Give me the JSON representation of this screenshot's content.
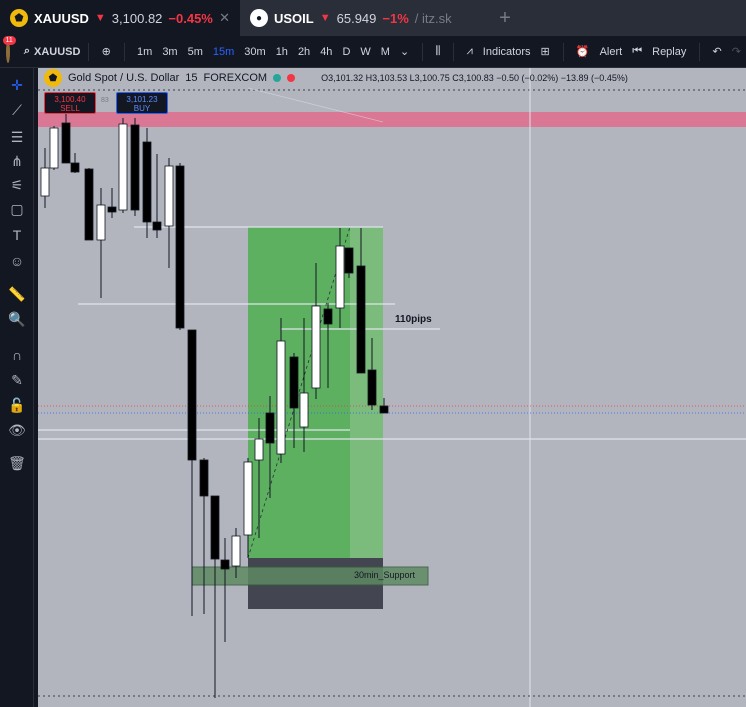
{
  "tabs": [
    {
      "symbol": "XAUUSD",
      "arrow": "▼",
      "price": "3,100.82",
      "change": "−0.45%",
      "close": "✕"
    },
    {
      "symbol": "USOIL",
      "arrow": "▼",
      "price": "65.949",
      "change": "−1%",
      "extra": "/ itz.sk"
    }
  ],
  "toolbar": {
    "notifications": "11",
    "symbol": "XAUUSD",
    "intervals": [
      "1m",
      "3m",
      "5m",
      "15m",
      "30m",
      "1h",
      "2h",
      "4h",
      "D",
      "W",
      "M"
    ],
    "active_interval": "15m",
    "indicators_label": "Indicators",
    "alert_label": "Alert",
    "replay_label": "Replay"
  },
  "legend": {
    "title": "Gold Spot / U.S. Dollar",
    "interval": "15",
    "source": "FOREXCOM",
    "ohlc": "O3,101.32 H3,103.53 L3,100.75 C3,100.83 −0.50 (−0.02%) −13.89 (−0.45%)"
  },
  "order": {
    "sell_price": "3,100.40",
    "sell_label": "SELL",
    "spread": "83",
    "buy_price": "3,101.23",
    "buy_label": "BUY"
  },
  "annotations": {
    "pips": "110pips",
    "support": "30min_Support"
  },
  "colors": {
    "background": "#b2b5be",
    "up": "#ffffff",
    "down": "#000000",
    "profit_zone": "#4caf50",
    "loss_zone": "#434651",
    "resistance_band": "#e06c8e"
  }
}
